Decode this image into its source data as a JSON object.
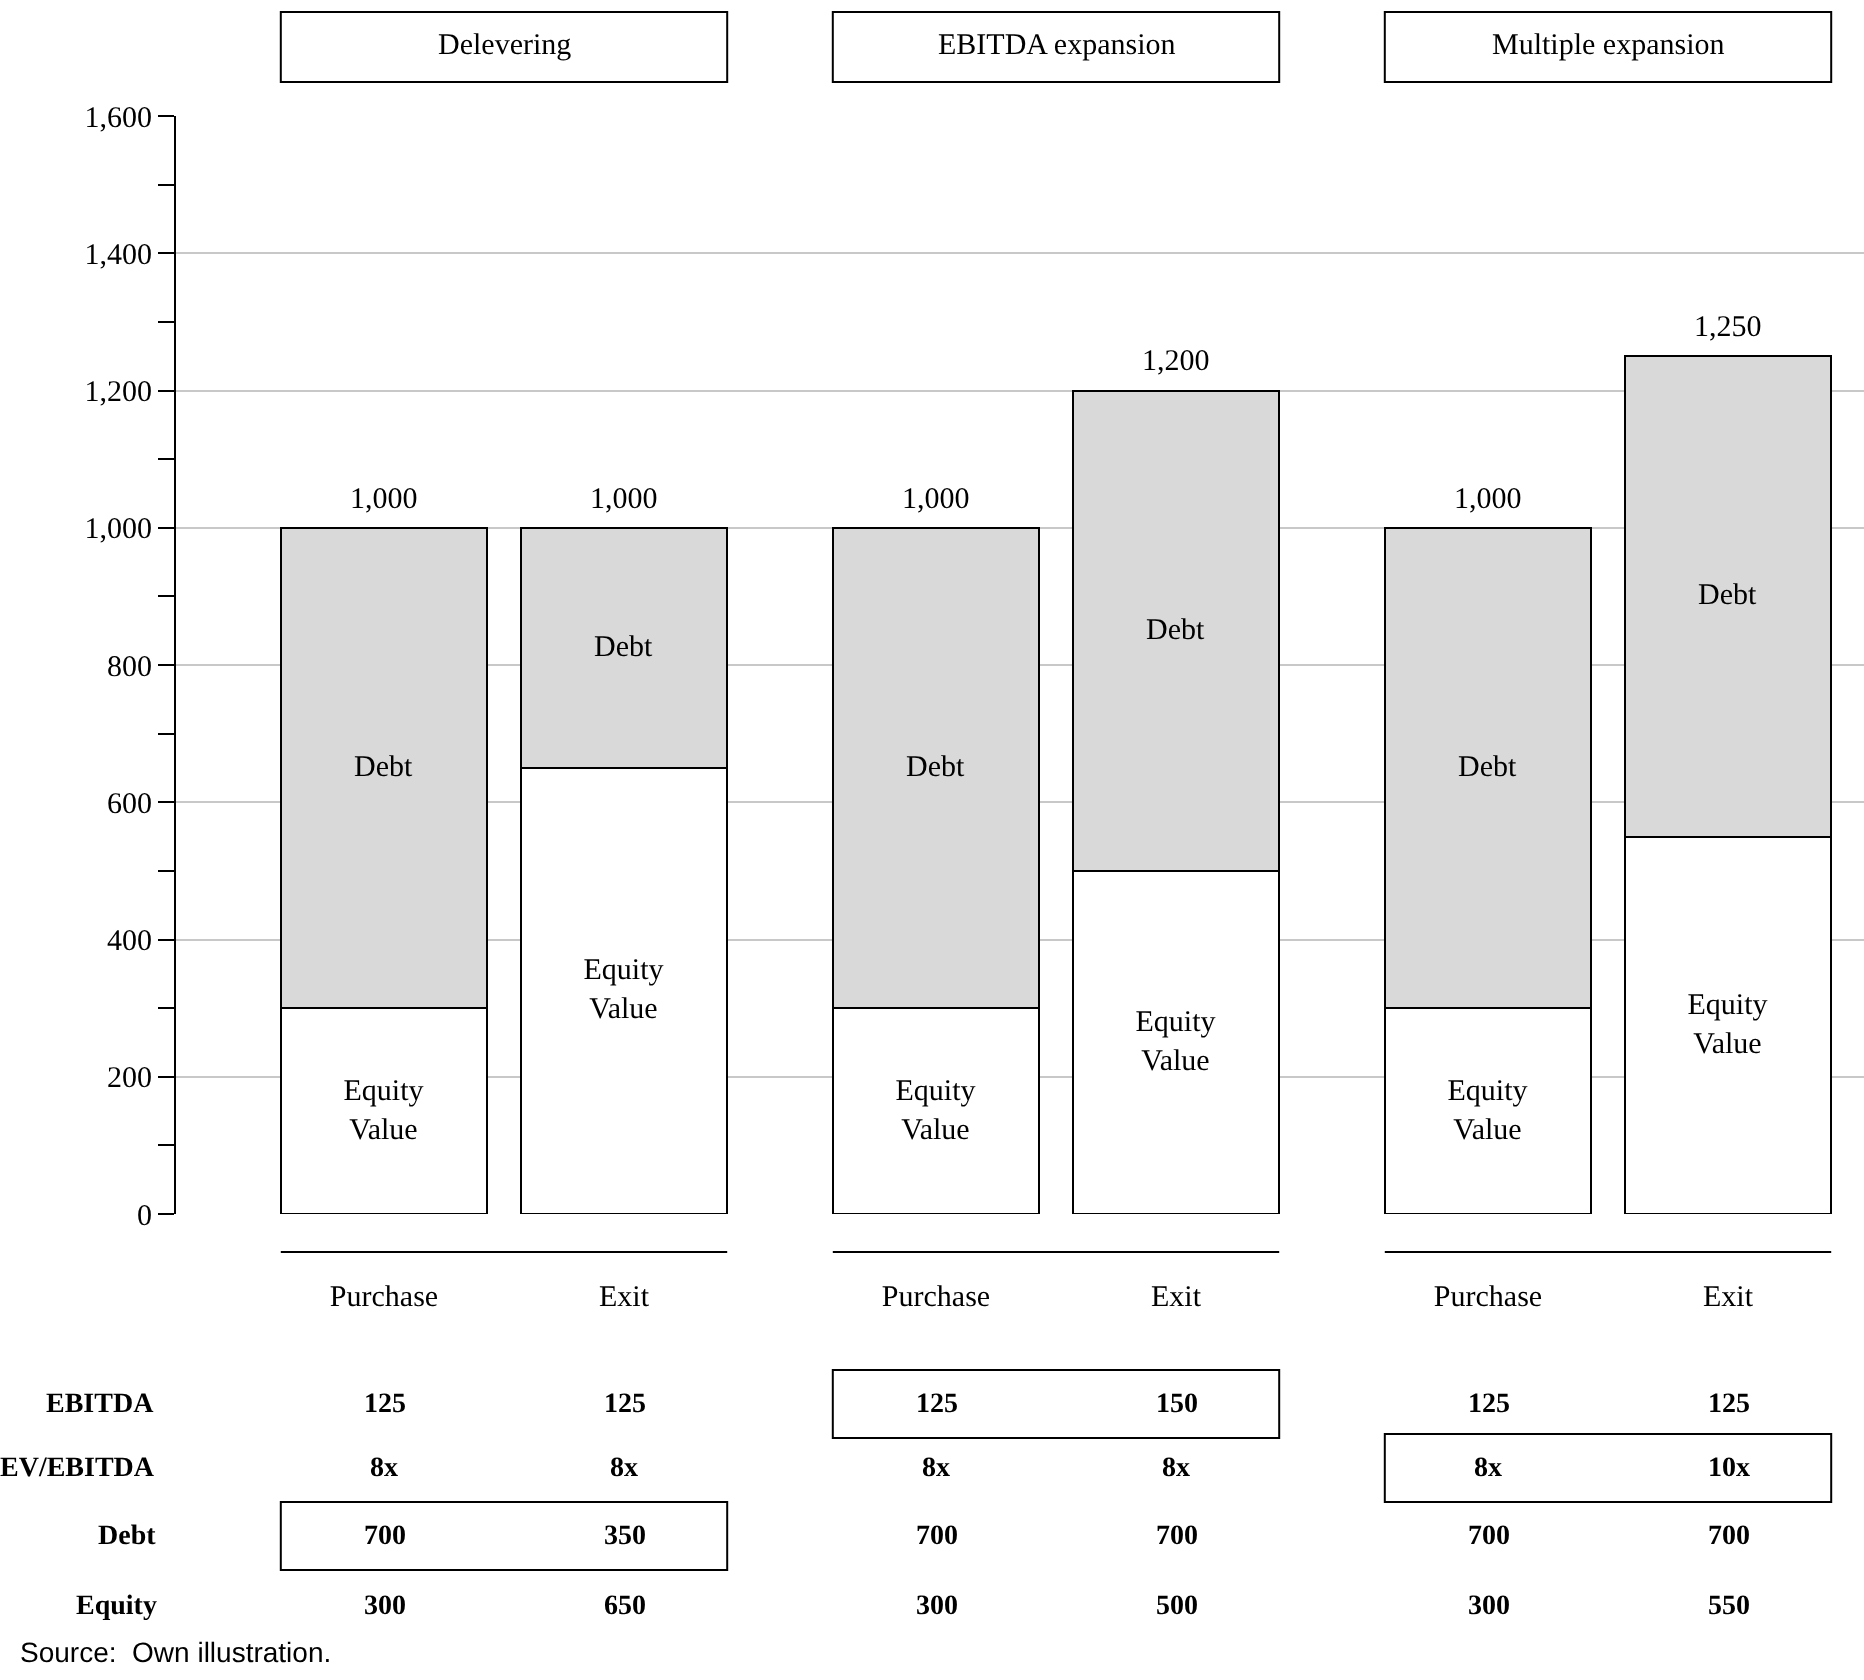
{
  "chart_data": {
    "type": "bar",
    "stacked": true,
    "categories": [
      "Purchase",
      "Exit",
      "Purchase",
      "Exit",
      "Purchase",
      "Exit"
    ],
    "series": [
      {
        "name": "Equity Value",
        "color": "#ffffff",
        "values": [
          300,
          650,
          300,
          500,
          300,
          550
        ]
      },
      {
        "name": "Debt",
        "color": "#d9d9d9",
        "values": [
          700,
          350,
          700,
          700,
          700,
          700
        ]
      }
    ],
    "totals": [
      "1,000",
      "1,000",
      "1,000",
      "1,200",
      "1,000",
      "1,250"
    ],
    "ylim": [
      0,
      1600
    ],
    "yticks": [
      0,
      {
        "value": 100,
        "label": null
      },
      {
        "value": 200,
        "label": "200"
      },
      {
        "value": 300,
        "label": null
      },
      {
        "value": 400,
        "label": "400"
      },
      {
        "value": 500,
        "label": null
      },
      {
        "value": 600,
        "label": "600"
      },
      {
        "value": 700,
        "label": null
      },
      {
        "value": 800,
        "label": "800"
      },
      {
        "value": 900,
        "label": null
      },
      {
        "value": 1000,
        "label": "1,000"
      },
      {
        "value": 1100,
        "label": null
      },
      {
        "value": 1200,
        "label": "1,200"
      },
      {
        "value": 1300,
        "label": null
      },
      {
        "value": 1400,
        "label": "1,400"
      },
      {
        "value": 1500,
        "label": null
      },
      {
        "value": 1600,
        "label": "1,600"
      }
    ],
    "grid": "y",
    "legend": false,
    "annotations": [
      "Delevering",
      "EBITDA expansion",
      "Multiple expansion",
      "EBITDA",
      "EV/EBITDA",
      "Debt",
      "Equity",
      "125",
      "125",
      "125",
      "150",
      "125",
      "125",
      "8x",
      "8x",
      "8x",
      "8x",
      "8x",
      "10x",
      "700",
      "350",
      "700",
      "700",
      "700",
      "700",
      "300",
      "650",
      "300",
      "500",
      "300",
      "550",
      "Source:  Own illustration."
    ]
  }
}
